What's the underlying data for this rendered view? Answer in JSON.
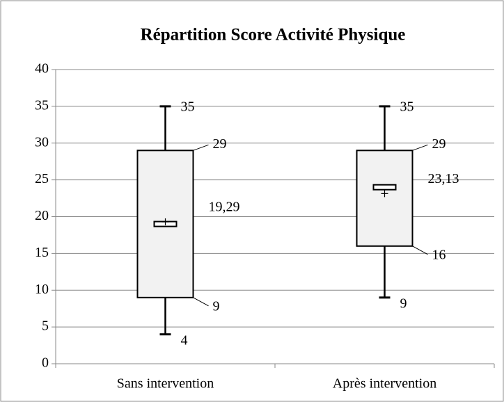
{
  "chart_data": {
    "type": "box",
    "title": "Répartition Score Activité Physique",
    "categories": [
      "Sans intervention",
      "Après intervention"
    ],
    "boxes": [
      {
        "min": 4,
        "q1": 9,
        "median": 19,
        "q3": 29,
        "max": 35,
        "mean": 19.29,
        "mean_label": "19,29"
      },
      {
        "min": 9,
        "q1": 16,
        "median": 24,
        "q3": 29,
        "max": 35,
        "mean": 23.13,
        "mean_label": "23,13"
      }
    ],
    "color": "#f2f2f2",
    "ylim": [
      0,
      40
    ],
    "yticks": [
      0,
      5,
      10,
      15,
      20,
      25,
      30,
      35,
      40
    ],
    "grid": true
  }
}
